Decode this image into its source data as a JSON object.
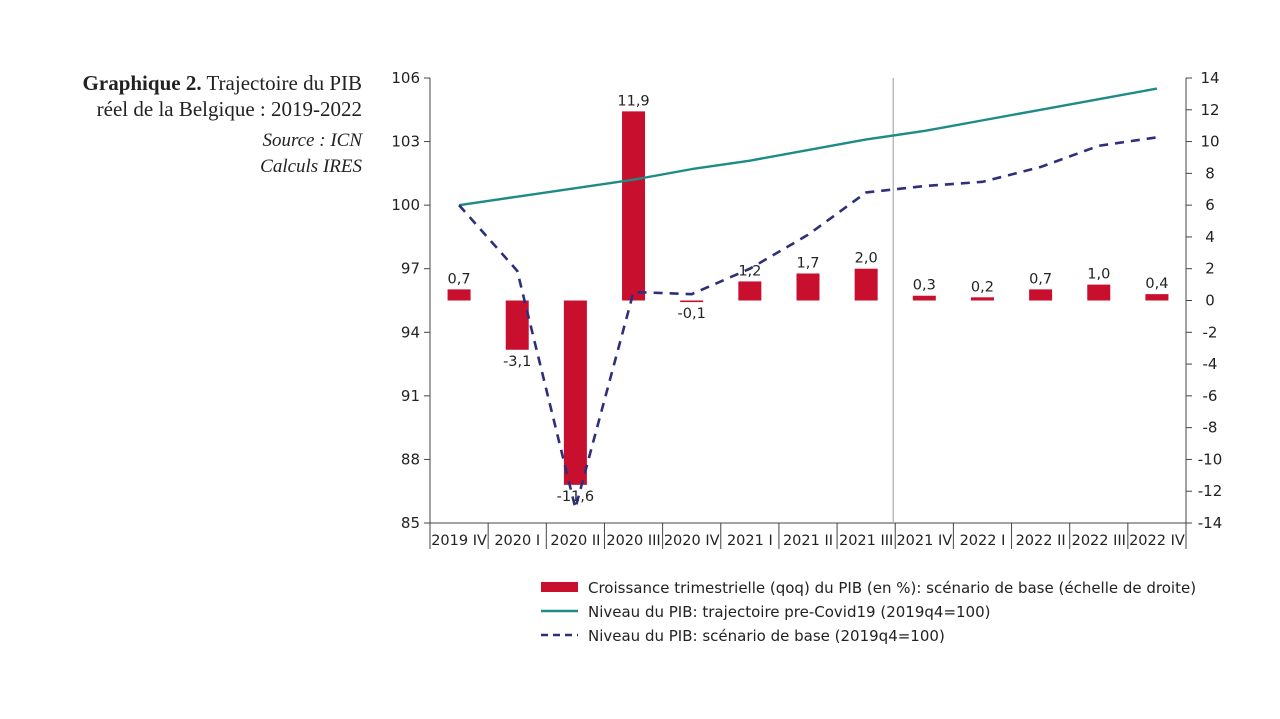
{
  "caption": {
    "title_bold": "Graphique 2.",
    "title_rest": "Trajectoire du PIB",
    "title_line2": "réel de la Belgique : 2019-2022",
    "source": "Source : ICN",
    "calc": "Calculs IRES"
  },
  "chart_data": {
    "type": "bar",
    "categories": [
      "2019 IV",
      "2020 I",
      "2020 II",
      "2020 III",
      "2020 IV",
      "2021 I",
      "2021 II",
      "2021 III",
      "2021 IV",
      "2022 I",
      "2022 II",
      "2022 III",
      "2022 IV"
    ],
    "y_left": {
      "ylim": [
        85,
        106
      ],
      "ticks": [
        "85",
        "88",
        "91",
        "94",
        "97",
        "100",
        "103",
        "106"
      ]
    },
    "y_right": {
      "ylim": [
        -14,
        14
      ],
      "ticks": [
        "-14",
        "-12",
        "-10",
        "-8",
        "-6",
        "-4",
        "-2",
        "0",
        "2",
        "4",
        "6",
        "8",
        "10",
        "12",
        "14"
      ]
    },
    "forecast_divider_after": "2021 III",
    "series": [
      {
        "name": "Croissance trimestrielle (qoq) du PIB (en %): scénario de base (échelle de droite)",
        "kind": "bar",
        "axis": "right",
        "color": "#c8102e",
        "values": [
          0.7,
          -3.1,
          -11.6,
          11.9,
          -0.1,
          1.2,
          1.7,
          2.0,
          0.3,
          0.2,
          0.7,
          1.0,
          0.4
        ],
        "labels": [
          "0,7",
          "-3,1",
          "-11,6",
          "11,9",
          "-0,1",
          "1,2",
          "1,7",
          "2,0",
          "0,3",
          "0,2",
          "0,7",
          "1,0",
          "0,4"
        ]
      },
      {
        "name": "Niveau du PIB: trajectoire pre-Covid19 (2019q4=100)",
        "kind": "line",
        "axis": "left",
        "color": "#1e8c86",
        "dash": false,
        "values": [
          100.0,
          100.4,
          100.8,
          101.2,
          101.7,
          102.1,
          102.6,
          103.1,
          103.5,
          104.0,
          104.5,
          105.0,
          105.5
        ]
      },
      {
        "name": "Niveau du PIB: scénario de base (2019q4=100)",
        "kind": "line",
        "axis": "left",
        "color": "#2e2f7a",
        "dash": true,
        "values": [
          100.0,
          96.9,
          85.7,
          95.9,
          95.8,
          97.0,
          98.6,
          100.6,
          100.9,
          101.1,
          101.8,
          102.8,
          103.2
        ]
      }
    ]
  }
}
